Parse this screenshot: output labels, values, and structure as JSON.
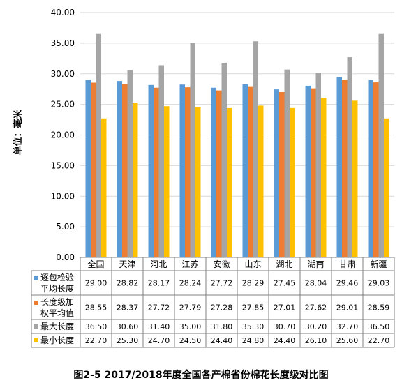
{
  "chart_data": {
    "type": "bar",
    "title": "",
    "ylabel": "单位：毫米",
    "ylim": [
      0,
      40
    ],
    "yticks": [
      "0.00",
      "5.00",
      "10.00",
      "15.00",
      "20.00",
      "25.00",
      "30.00",
      "35.00",
      "40.00"
    ],
    "grid": true,
    "legend": "data-table-left",
    "categories": [
      "全国",
      "天津",
      "河北",
      "江苏",
      "安徽",
      "山东",
      "湖北",
      "湖南",
      "甘肃",
      "新疆"
    ],
    "series": [
      {
        "name": "逐包检验平均长度",
        "label_lines": [
          "逐包检验",
          "平均长度"
        ],
        "color": "#5B9BD5",
        "values": [
          29.0,
          28.82,
          28.17,
          28.24,
          27.72,
          28.29,
          27.45,
          28.04,
          29.46,
          29.03
        ],
        "display": [
          "29.00",
          "28.82",
          "28.17",
          "28.24",
          "27.72",
          "28.29",
          "27.45",
          "28.04",
          "29.46",
          "29.03"
        ]
      },
      {
        "name": "长度级加权平均值",
        "label_lines": [
          "长度级加",
          "权平均值"
        ],
        "color": "#ED7D31",
        "values": [
          28.55,
          28.37,
          27.72,
          27.79,
          27.28,
          27.85,
          27.01,
          27.62,
          29.01,
          28.59
        ],
        "display": [
          "28.55",
          "28.37",
          "27.72",
          "27.79",
          "27.28",
          "27.85",
          "27.01",
          "27.62",
          "29.01",
          "28.59"
        ]
      },
      {
        "name": "最大长度",
        "label_lines": [
          "最大长度"
        ],
        "color": "#A5A5A5",
        "values": [
          36.5,
          30.6,
          31.4,
          35.0,
          31.8,
          35.3,
          30.7,
          30.2,
          32.7,
          36.5
        ],
        "display": [
          "36.50",
          "30.60",
          "31.40",
          "35.00",
          "31.80",
          "35.30",
          "30.70",
          "30.20",
          "32.70",
          "36.50"
        ]
      },
      {
        "name": "最小长度",
        "label_lines": [
          "最小长度"
        ],
        "color": "#FFC000",
        "values": [
          22.7,
          25.3,
          24.7,
          24.5,
          24.4,
          24.8,
          24.4,
          26.1,
          25.6,
          22.7
        ],
        "display": [
          "22.70",
          "25.30",
          "24.70",
          "24.50",
          "24.40",
          "24.80",
          "24.40",
          "26.10",
          "25.60",
          "22.70"
        ]
      }
    ]
  },
  "caption": "图2-5  2017/2018年度全国各产棉省份棉花长度级对比图"
}
